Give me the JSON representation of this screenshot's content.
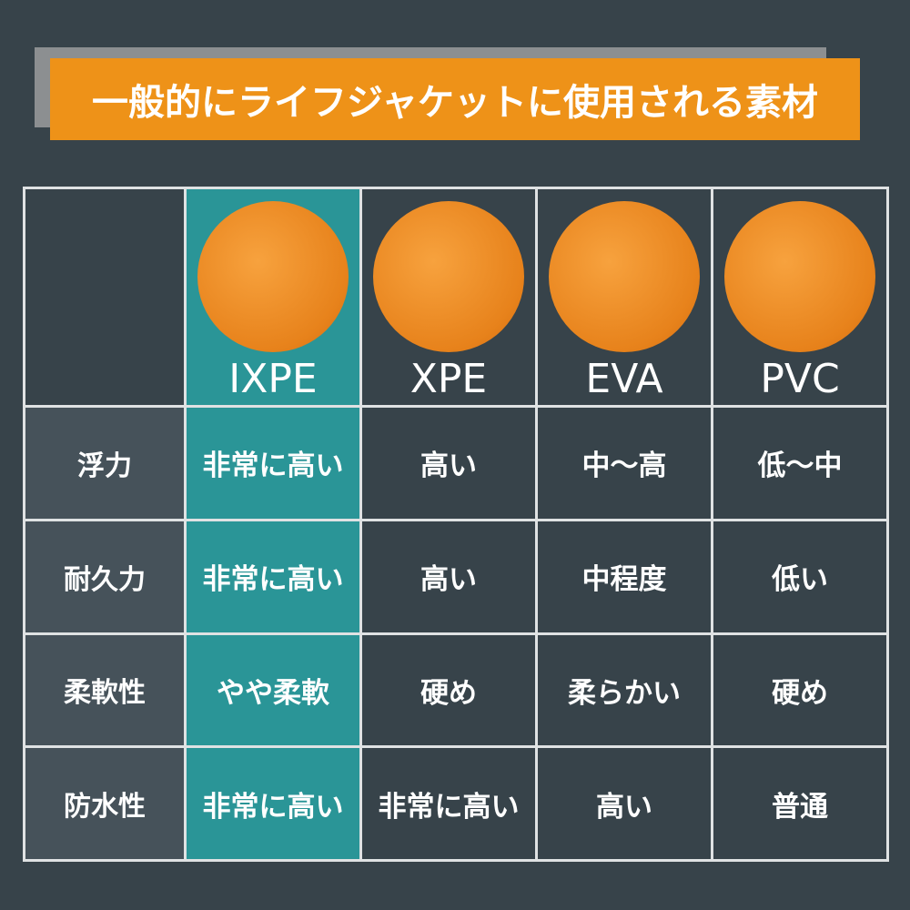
{
  "header": {
    "title": "一般的にライフジャケットに使用される素材"
  },
  "table": {
    "columns": [
      "IXPE",
      "XPE",
      "EVA",
      "PVC"
    ],
    "rows": [
      {
        "label": "浮力",
        "cells": [
          "非常に高い",
          "高い",
          "中～高",
          "低～中"
        ]
      },
      {
        "label": "耐久力",
        "cells": [
          "非常に高い",
          "高い",
          "中程度",
          "低い"
        ]
      },
      {
        "label": "柔軟性",
        "cells": [
          "やや柔軟",
          "硬め",
          "柔らかい",
          "硬め"
        ]
      },
      {
        "label": "防水性",
        "cells": [
          "非常に高い",
          "非常に高い",
          "高い",
          "普通"
        ]
      }
    ]
  }
}
